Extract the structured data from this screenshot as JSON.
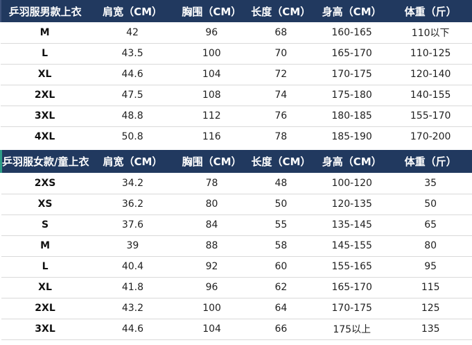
{
  "colors": {
    "header_bg": "#21395f",
    "header_text": "#ffffff",
    "row_divider": "#d9d9d9",
    "cell_text": "#1f1f1f",
    "men_header_accent": "#3d5179",
    "women_header_accent": "#2d9d87"
  },
  "chart_data": [
    {
      "type": "table",
      "title": "乒羽服男款上衣",
      "headers": [
        "乒羽服男款上衣",
        "肩宽（CM）",
        "胸围（CM）",
        "长度（CM）",
        "身高（CM）",
        "体重（斤）"
      ],
      "rows": [
        [
          "M",
          "42",
          "96",
          "68",
          "160-165",
          "110以下"
        ],
        [
          "L",
          "43.5",
          "100",
          "70",
          "165-170",
          "110-125"
        ],
        [
          "XL",
          "44.6",
          "104",
          "72",
          "170-175",
          "120-140"
        ],
        [
          "2XL",
          "47.5",
          "108",
          "74",
          "175-180",
          "140-155"
        ],
        [
          "3XL",
          "48.8",
          "112",
          "76",
          "180-185",
          "155-170"
        ],
        [
          "4XL",
          "50.8",
          "116",
          "78",
          "185-190",
          "170-200"
        ]
      ]
    },
    {
      "type": "table",
      "title": "乒羽服女款/童上衣",
      "headers": [
        "乒羽服女款/童上衣",
        "肩宽（CM）",
        "胸围（CM）",
        "长度（CM）",
        "身高（CM）",
        "体重（斤）"
      ],
      "rows": [
        [
          "2XS",
          "34.2",
          "78",
          "48",
          "100-120",
          "35"
        ],
        [
          "XS",
          "36.2",
          "80",
          "50",
          "120-135",
          "50"
        ],
        [
          "S",
          "37.6",
          "84",
          "55",
          "135-145",
          "65"
        ],
        [
          "M",
          "39",
          "88",
          "58",
          "145-155",
          "80"
        ],
        [
          "L",
          "40.4",
          "92",
          "60",
          "155-165",
          "95"
        ],
        [
          "XL",
          "41.8",
          "96",
          "62",
          "165-170",
          "115"
        ],
        [
          "2XL",
          "43.2",
          "100",
          "64",
          "170-175",
          "125"
        ],
        [
          "3XL",
          "44.6",
          "104",
          "66",
          "175以上",
          "135"
        ]
      ]
    }
  ]
}
